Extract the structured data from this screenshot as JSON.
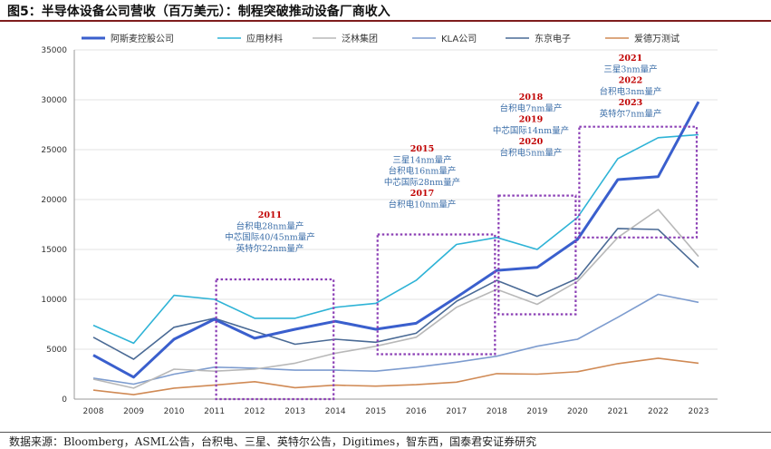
{
  "title": "图5：半导体设备公司营收（百万美元）：制程突破推动设备厂商收入",
  "source": "数据来源：Bloomberg，ASML公告，台积电、三星、英特尔公告，Digitimes，智东西，国泰君安证券研究",
  "chart_data": {
    "type": "line",
    "x": [
      "2008",
      "2009",
      "2010",
      "2011",
      "2012",
      "2013",
      "2014",
      "2015",
      "2016",
      "2017",
      "2018",
      "2019",
      "2020",
      "2021",
      "2022",
      "2023"
    ],
    "ylim": [
      0,
      35000
    ],
    "yticks": [
      "0",
      "5000",
      "10000",
      "15000",
      "20000",
      "25000",
      "30000",
      "35000"
    ],
    "series": [
      {
        "name": "阿斯麦控股公司",
        "color": "#3a5fcd",
        "width": 3,
        "values": [
          4400,
          2200,
          6000,
          8000,
          6100,
          7000,
          7800,
          7000,
          7600,
          10200,
          12900,
          13200,
          16000,
          22000,
          22300,
          29800
        ]
      },
      {
        "name": "应用材料",
        "color": "#2eb3d6",
        "width": 1.6,
        "values": [
          7400,
          5600,
          10400,
          10000,
          8100,
          8100,
          9200,
          9600,
          11900,
          15500,
          16200,
          15000,
          18200,
          24100,
          26200,
          26500
        ]
      },
      {
        "name": "泛林集团",
        "color": "#b8b8b8",
        "width": 1.6,
        "values": [
          2000,
          1100,
          3000,
          2800,
          3000,
          3600,
          4600,
          5300,
          6200,
          9200,
          11000,
          9500,
          11800,
          16200,
          19000,
          14300
        ]
      },
      {
        "name": "KLA公司",
        "color": "#7d9ccf",
        "width": 1.6,
        "values": [
          2100,
          1500,
          2500,
          3200,
          3100,
          2900,
          2900,
          2800,
          3200,
          3700,
          4300,
          5300,
          6000,
          8200,
          10500,
          9700
        ]
      },
      {
        "name": "东京电子",
        "color": "#4a6a95",
        "width": 1.6,
        "values": [
          6200,
          4000,
          7200,
          8100,
          6800,
          5500,
          6000,
          5700,
          6600,
          9800,
          11900,
          10300,
          12100,
          17100,
          17000,
          13200
        ]
      },
      {
        "name": "爱德万测试",
        "color": "#d08a55",
        "width": 1.6,
        "values": [
          900,
          450,
          1100,
          1400,
          1750,
          1150,
          1400,
          1300,
          1450,
          1700,
          2550,
          2500,
          2750,
          3550,
          4100,
          3600
        ]
      }
    ],
    "boxes": [
      {
        "from": "2011",
        "to": "2014",
        "y_low": 0,
        "y_high": 12000,
        "year_labels": [
          "2011"
        ],
        "text_lines": [
          "台积电28nm量产",
          "中芯国际40/45nm量产",
          "英特尔22nm量产"
        ]
      },
      {
        "from": "2015",
        "to": "2018",
        "y_low": 4500,
        "y_high": 16500,
        "year_labels": [
          "2015",
          "2017"
        ],
        "text_lines": [
          "三星14nm量产",
          "台积电16nm量产",
          "中芯国际28nm量产",
          "台积电10nm量产"
        ]
      },
      {
        "from": "2018",
        "to": "2020",
        "y_low": 8500,
        "y_high": 20400,
        "year_labels": [
          "2018",
          "2019",
          "2020"
        ],
        "text_lines": [
          "台积电7nm量产",
          "中芯国际14nm量产",
          "台积电5nm量产"
        ]
      },
      {
        "from": "2020",
        "to": "2023",
        "y_low": 16200,
        "y_high": 27300,
        "year_labels": [
          "2021",
          "2022",
          "2023"
        ],
        "text_lines": [
          "三星3nm量产",
          "台积电3nm量产",
          "英特尔7nm量产"
        ]
      }
    ]
  }
}
